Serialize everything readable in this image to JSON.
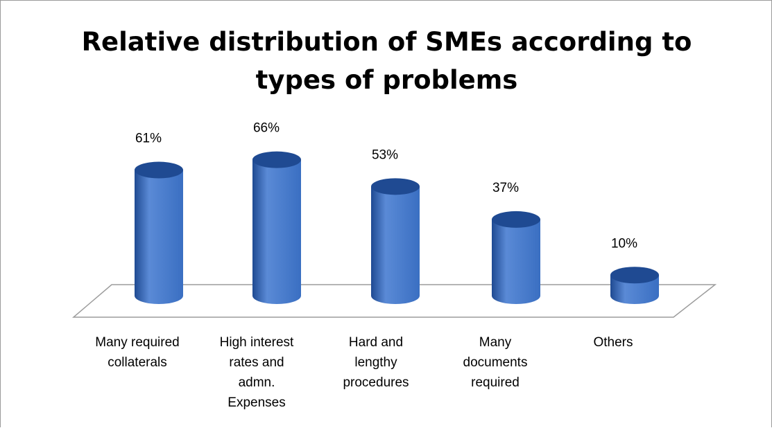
{
  "chart_data": {
    "type": "bar",
    "title": "Relative distribution of SMEs according to types of problems",
    "categories": [
      [
        "Many required",
        "collaterals"
      ],
      [
        "High interest",
        "rates and",
        "admn.",
        "Expenses"
      ],
      [
        "Hard and",
        "lengthy",
        "procedures"
      ],
      [
        "Many",
        "documents",
        "required"
      ],
      [
        "Others"
      ]
    ],
    "values": [
      61,
      66,
      53,
      37,
      10
    ],
    "data_labels": [
      "61%",
      "66%",
      "53%",
      "37%",
      "10%"
    ],
    "unit": "%",
    "ylim": [
      0,
      100
    ],
    "grid": false,
    "legend": "none",
    "style": "3d-cylinder",
    "colors": {
      "bar": "#3a6fc2",
      "bar_light": "#5a8ad6",
      "bar_dark": "#1f4a92",
      "floor_line": "#9c9c9c",
      "text": "#000000"
    }
  }
}
